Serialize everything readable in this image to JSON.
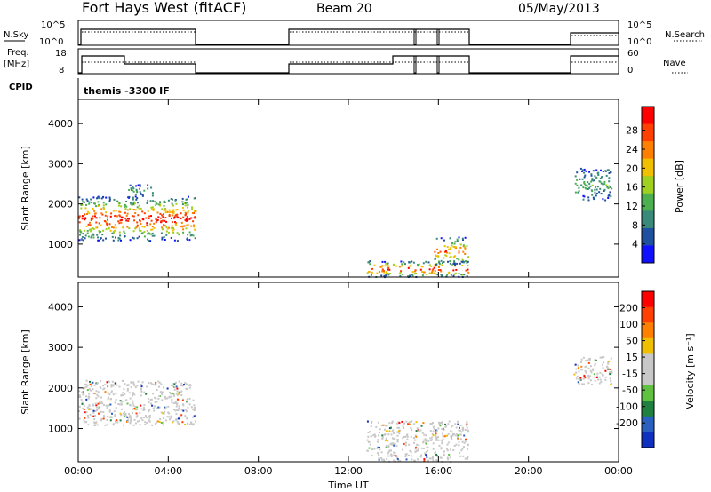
{
  "header": {
    "station": "Fort Hays West (fitACF)",
    "beam": "Beam 20",
    "date": "05/May/2013"
  },
  "panels": {
    "nsky_label": "N.Sky",
    "nsky_ticks": [
      "10^5",
      "10^0"
    ],
    "nsearch_label": "N.Search",
    "nsearch_ticks": [
      "10^5",
      "10^0"
    ],
    "freq_label_1": "Freq.",
    "freq_label_2": "[MHz]",
    "freq_ticks": [
      "18",
      "8"
    ],
    "nave_label": "Nave",
    "nave_ticks": [
      "60",
      "0"
    ],
    "cpid_label": "CPID",
    "cpid_value": "themis -3300 IF"
  },
  "chart_data": [
    {
      "type": "heatmap",
      "name": "power",
      "ylabel": "Slant Range [km]",
      "xlabel": "Time UT",
      "x_ticks": [
        "00:00",
        "04:00",
        "08:00",
        "12:00",
        "16:00",
        "20:00",
        "00:00"
      ],
      "xlim_hours": [
        0,
        24
      ],
      "y_ticks": [
        "1000",
        "2000",
        "3000",
        "4000"
      ],
      "ylim": [
        180,
        4600
      ],
      "colorbar_label": "Power [dB]",
      "colorbar_ticks": [
        "4",
        "8",
        "12",
        "16",
        "20",
        "24",
        "28"
      ],
      "colorbar_colors": [
        "#1010ff",
        "#2050a0",
        "#3a8a7a",
        "#4cb050",
        "#a0d020",
        "#f0c000",
        "#ff8000",
        "#ff4000",
        "#ff0000"
      ],
      "echo_regions": [
        {
          "t_start": 0.0,
          "t_end": 5.2,
          "range_min": 1100,
          "range_max": 2200,
          "peak_dB": 24
        },
        {
          "t_start": 2.2,
          "t_end": 3.3,
          "range_min": 2200,
          "range_max": 2500,
          "peak_dB": 8
        },
        {
          "t_start": 12.8,
          "t_end": 17.3,
          "range_min": 200,
          "range_max": 600,
          "peak_dB": 24
        },
        {
          "t_start": 15.8,
          "t_end": 17.3,
          "range_min": 500,
          "range_max": 1200,
          "peak_dB": 20
        },
        {
          "t_start": 22.0,
          "t_end": 23.7,
          "range_min": 2100,
          "range_max": 2900,
          "peak_dB": 8
        }
      ]
    },
    {
      "type": "heatmap",
      "name": "velocity",
      "ylabel": "Slant Range [km]",
      "xlabel": "Time UT",
      "x_ticks": [
        "00:00",
        "04:00",
        "08:00",
        "12:00",
        "16:00",
        "20:00",
        "00:00"
      ],
      "xlim_hours": [
        0,
        24
      ],
      "y_ticks": [
        "1000",
        "2000",
        "3000",
        "4000"
      ],
      "ylim": [
        180,
        4600
      ],
      "colorbar_label": "Velocity [m s⁻¹]",
      "colorbar_ticks": [
        "200",
        "100",
        "50",
        "15",
        "-15",
        "-50",
        "-100",
        "-200"
      ],
      "colorbar_colors": [
        "#1030c0",
        "#2a60c0",
        "#208040",
        "#60c040",
        "#c8c8c8",
        "#c8c8c8",
        "#f0c000",
        "#ff8000",
        "#ff4000",
        "#ff0000"
      ],
      "echo_regions": [
        {
          "t_start": 0.0,
          "t_end": 5.2,
          "range_min": 1100,
          "range_max": 2200,
          "velocity_typical": 0
        },
        {
          "t_start": 12.8,
          "t_end": 17.3,
          "range_min": 200,
          "range_max": 1200,
          "velocity_typical": 0
        },
        {
          "t_start": 22.0,
          "t_end": 23.7,
          "range_min": 2100,
          "range_max": 2800,
          "velocity_typical": 0
        }
      ]
    }
  ]
}
